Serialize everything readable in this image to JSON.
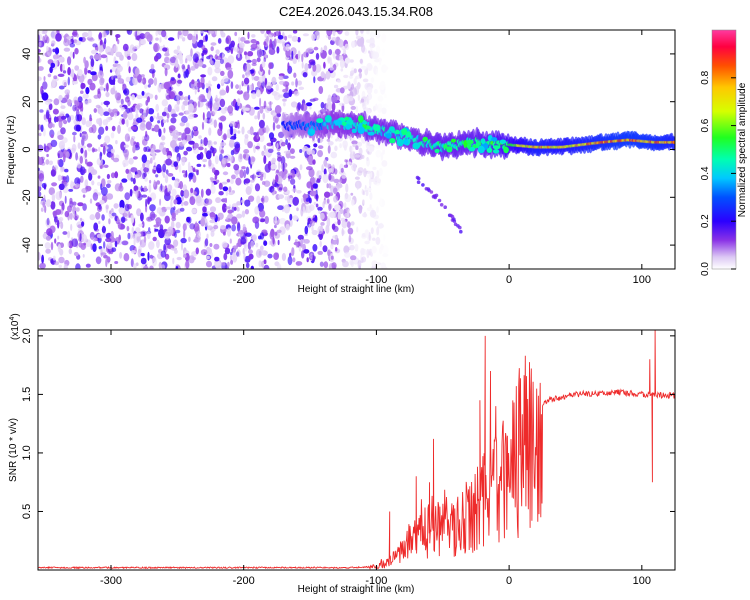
{
  "title": "C2E4.2026.043.15.34.R08",
  "chart_data": [
    {
      "type": "heatmap",
      "xlabel": "Height of straight line (km)",
      "ylabel": "Frequency (Hz)",
      "xlim": [
        -355,
        125
      ],
      "ylim": [
        -50,
        50
      ],
      "xticks": [
        -300,
        -200,
        -100,
        0,
        100
      ],
      "yticks": [
        -40,
        -20,
        0,
        20,
        40
      ],
      "grid": false,
      "colorbar": {
        "label": "Normalized spectral amplitude",
        "range": [
          0,
          1
        ],
        "ticks": [
          0.0,
          0.2,
          0.4,
          0.6,
          0.8
        ]
      },
      "features": {
        "noise_region_x": [
          -355,
          -105
        ],
        "dominant_band": [
          {
            "x": -170,
            "freq": 10,
            "amp": 0.25
          },
          {
            "x": -150,
            "freq": 10,
            "amp": 0.35
          },
          {
            "x": -130,
            "freq": 11,
            "amp": 0.4
          },
          {
            "x": -110,
            "freq": 10,
            "amp": 0.45
          },
          {
            "x": -90,
            "freq": 7,
            "amp": 0.45
          },
          {
            "x": -70,
            "freq": 4,
            "amp": 0.45
          },
          {
            "x": -50,
            "freq": 1,
            "amp": 0.5
          },
          {
            "x": -30,
            "freq": 3,
            "amp": 0.5
          },
          {
            "x": -10,
            "freq": 2,
            "amp": 0.55
          },
          {
            "x": 0,
            "freq": 2,
            "amp": 0.6
          },
          {
            "x": 20,
            "freq": 1,
            "amp": 0.8
          },
          {
            "x": 40,
            "freq": 1,
            "amp": 0.75
          },
          {
            "x": 70,
            "freq": 3,
            "amp": 0.85
          },
          {
            "x": 90,
            "freq": 4,
            "amp": 0.9
          },
          {
            "x": 110,
            "freq": 3,
            "amp": 0.85
          },
          {
            "x": 125,
            "freq": 3,
            "amp": 0.8
          }
        ],
        "secondary_branch": [
          {
            "x": -70,
            "freq": -12
          },
          {
            "x": -55,
            "freq": -20
          },
          {
            "x": -45,
            "freq": -27
          },
          {
            "x": -35,
            "freq": -35
          }
        ]
      }
    },
    {
      "type": "line",
      "xlabel": "Height of straight line (km)",
      "ylabel": "SNR (10 * v/v)",
      "yscale_label": "(x10",
      "yscale_exp": "4",
      "yscale_close": ")",
      "xlim": [
        -355,
        125
      ],
      "ylim": [
        0,
        2.05
      ],
      "xticks": [
        -300,
        -200,
        -100,
        0,
        100
      ],
      "yticks": [
        0.5,
        1.0,
        1.5,
        2.0
      ],
      "ytick_labels": [
        "0.5",
        "1.0",
        "1.5",
        "2.0"
      ],
      "color": "#ee2a2a",
      "envelope": [
        {
          "x": -355,
          "y": 0.02
        },
        {
          "x": -120,
          "y": 0.02
        },
        {
          "x": -100,
          "y": 0.03
        },
        {
          "x": -90,
          "y": 0.08
        },
        {
          "x": -80,
          "y": 0.18
        },
        {
          "x": -70,
          "y": 0.3
        },
        {
          "x": -60,
          "y": 0.4
        },
        {
          "x": -50,
          "y": 0.45
        },
        {
          "x": -40,
          "y": 0.4
        },
        {
          "x": -30,
          "y": 0.5
        },
        {
          "x": -20,
          "y": 0.65
        },
        {
          "x": -10,
          "y": 0.75
        },
        {
          "x": 0,
          "y": 0.9
        },
        {
          "x": 10,
          "y": 1.15
        },
        {
          "x": 20,
          "y": 1.35
        },
        {
          "x": 30,
          "y": 1.45
        },
        {
          "x": 50,
          "y": 1.5
        },
        {
          "x": 80,
          "y": 1.52
        },
        {
          "x": 100,
          "y": 1.5
        },
        {
          "x": 125,
          "y": 1.49
        }
      ],
      "spikes": [
        {
          "x": -90,
          "y": 0.5
        },
        {
          "x": -70,
          "y": 0.8
        },
        {
          "x": -60,
          "y": 0.75
        },
        {
          "x": -57,
          "y": 1.12
        },
        {
          "x": -22,
          "y": 1.45
        },
        {
          "x": -18,
          "y": 2.0
        },
        {
          "x": -14,
          "y": 1.7
        },
        {
          "x": -10,
          "y": 1.4
        },
        {
          "x": 106,
          "y": 1.8
        },
        {
          "x": 110,
          "y": 2.05
        }
      ],
      "dips": [
        {
          "x": 108,
          "y": 0.75
        }
      ]
    }
  ]
}
